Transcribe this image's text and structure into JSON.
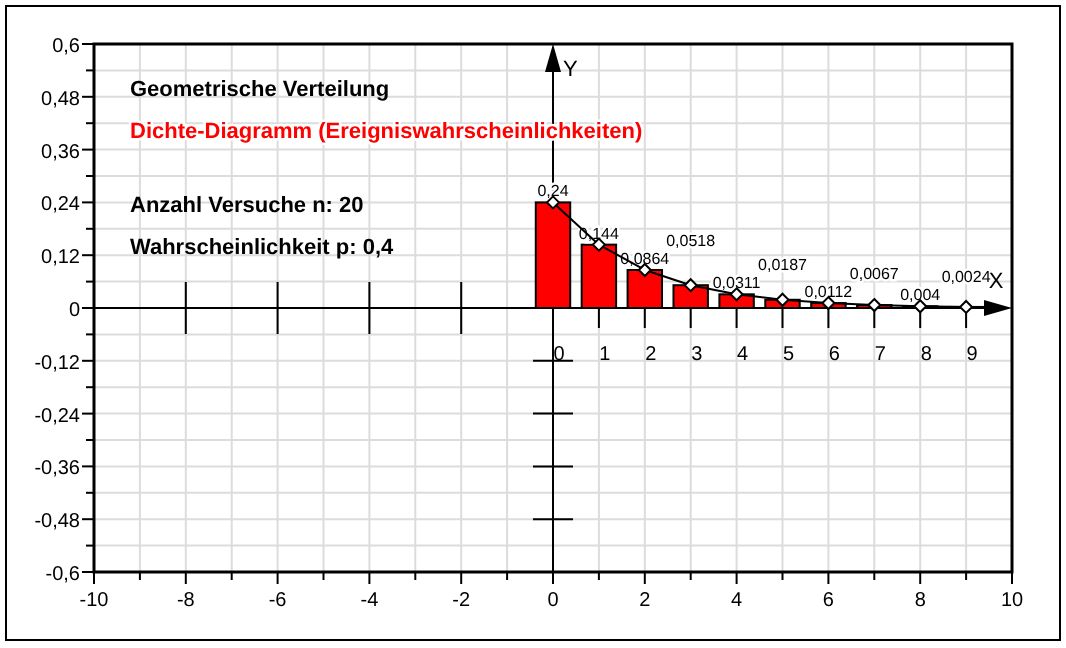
{
  "chart_data": {
    "type": "bar",
    "title": "Geometrische Verteilung",
    "subtitle": "Dichte-Diagramm (Ereigniswahrscheinlichkeiten)",
    "xlabel": "X",
    "ylabel": "Y",
    "annotations": [
      "Anzahl Versuche n: 20",
      "Wahrscheinlichkeit p: 0,4"
    ],
    "x": [
      0,
      1,
      2,
      3,
      4,
      5,
      6,
      7,
      8,
      9
    ],
    "series": [
      {
        "color": "#ff0000",
        "values": [
          0.24,
          0.144,
          0.0864,
          0.0518,
          0.0311,
          0.0187,
          0.0112,
          0.0067,
          0.004,
          0.0024
        ],
        "value_labels": [
          "0,24",
          "0,144",
          "0,0864",
          "0,0518",
          "0,0311",
          "0,0187",
          "0,0112",
          "0,0067",
          "0,004",
          "0,0024"
        ]
      },
      {
        "type": "line",
        "color": "#000000",
        "marker": "diamond",
        "values": [
          0.24,
          0.144,
          0.0864,
          0.0518,
          0.0311,
          0.0187,
          0.0112,
          0.0067,
          0.004,
          0.0024
        ]
      }
    ],
    "xlim": [
      -10,
      10
    ],
    "xticks": [
      -10,
      {
        "value": -9,
        "label": null
      },
      -8,
      {
        "value": -7,
        "label": null
      },
      -6,
      {
        "value": -5,
        "label": null
      },
      -4,
      {
        "value": -3,
        "label": null
      },
      -2,
      {
        "value": -1,
        "label": null
      },
      0,
      {
        "value": 1,
        "label": null
      },
      2,
      {
        "value": 3,
        "label": null
      },
      4,
      {
        "value": 5,
        "label": null
      },
      6,
      {
        "value": 7,
        "label": null
      },
      8,
      {
        "value": 9,
        "label": null
      },
      10
    ],
    "x2lim": [
      -10,
      10
    ],
    "x2ticks": [
      0,
      1,
      2,
      3,
      4,
      5,
      6,
      7,
      8,
      9
    ],
    "ylim": [
      -0.6,
      0.6
    ],
    "yticks": [
      {
        "value": -0.6,
        "label": "-0,6"
      },
      {
        "value": -0.54,
        "label": null
      },
      {
        "value": -0.48,
        "label": "-0,48"
      },
      {
        "value": -0.42,
        "label": null
      },
      {
        "value": -0.36,
        "label": "-0,36"
      },
      {
        "value": -0.3,
        "label": null
      },
      {
        "value": -0.24,
        "label": "-0,24"
      },
      {
        "value": -0.18,
        "label": null
      },
      {
        "value": -0.12,
        "label": "-0,12"
      },
      {
        "value": -0.06,
        "label": null
      },
      0,
      {
        "value": 0.06,
        "label": null
      },
      {
        "value": 0.12,
        "label": "0,12"
      },
      {
        "value": 0.18,
        "label": null
      },
      {
        "value": 0.24,
        "label": "0,24"
      },
      {
        "value": 0.3,
        "label": null
      },
      {
        "value": 0.36,
        "label": "0,36"
      },
      {
        "value": 0.42,
        "label": null
      },
      {
        "value": 0.48,
        "label": "0,48"
      },
      {
        "value": 0.54,
        "label": null
      },
      {
        "value": 0.6,
        "label": "0,6"
      }
    ],
    "grid": true
  }
}
